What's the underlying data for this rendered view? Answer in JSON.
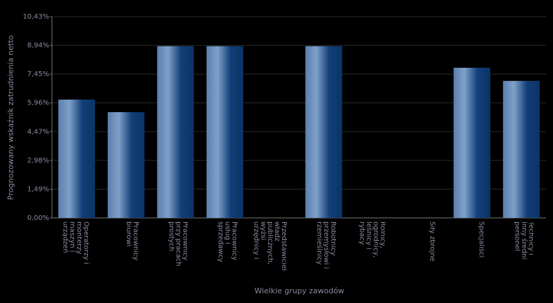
{
  "chart_data": {
    "type": "bar",
    "x_label": "Wielkie grupy zawodów",
    "y_label": "Prognozowany wskaźnik zatrudnienia netto",
    "categories": [
      "Operatorzy i monterzy maszyn i urządzeń",
      "Pracownicy biurowi",
      "Pracownicy przy pracach prostych",
      "Pracownicy usług i sprzedawcy",
      "Przedstawiciele władz publicznych, wyżsi urzędnicy i kierownicy",
      "Robotnicy przemysłowi i rzemieślnicy",
      "Rolnicy, ogrodnicy, leśnicy i rybacy",
      "Siły zbrojne",
      "Specjaliści",
      "Technicy i inny średni personel"
    ],
    "values": [
      6.13,
      5.48,
      8.9,
      8.9,
      null,
      8.9,
      null,
      null,
      7.78,
      7.1
    ],
    "color": "#0d3a72",
    "ylim": [
      0,
      10.43
    ],
    "yticks": [
      {
        "value": 0,
        "label": "0,00%"
      },
      {
        "value": 1.49,
        "label": "1,49%"
      },
      {
        "value": 2.98,
        "label": "2,98%"
      },
      {
        "value": 4.47,
        "label": "4,47%"
      },
      {
        "value": 5.96,
        "label": "5,96%"
      },
      {
        "value": 7.45,
        "label": "7,45%"
      },
      {
        "value": 8.94,
        "label": "8,94%"
      },
      {
        "value": 10.43,
        "label": "10,43%"
      }
    ],
    "grid": true
  }
}
